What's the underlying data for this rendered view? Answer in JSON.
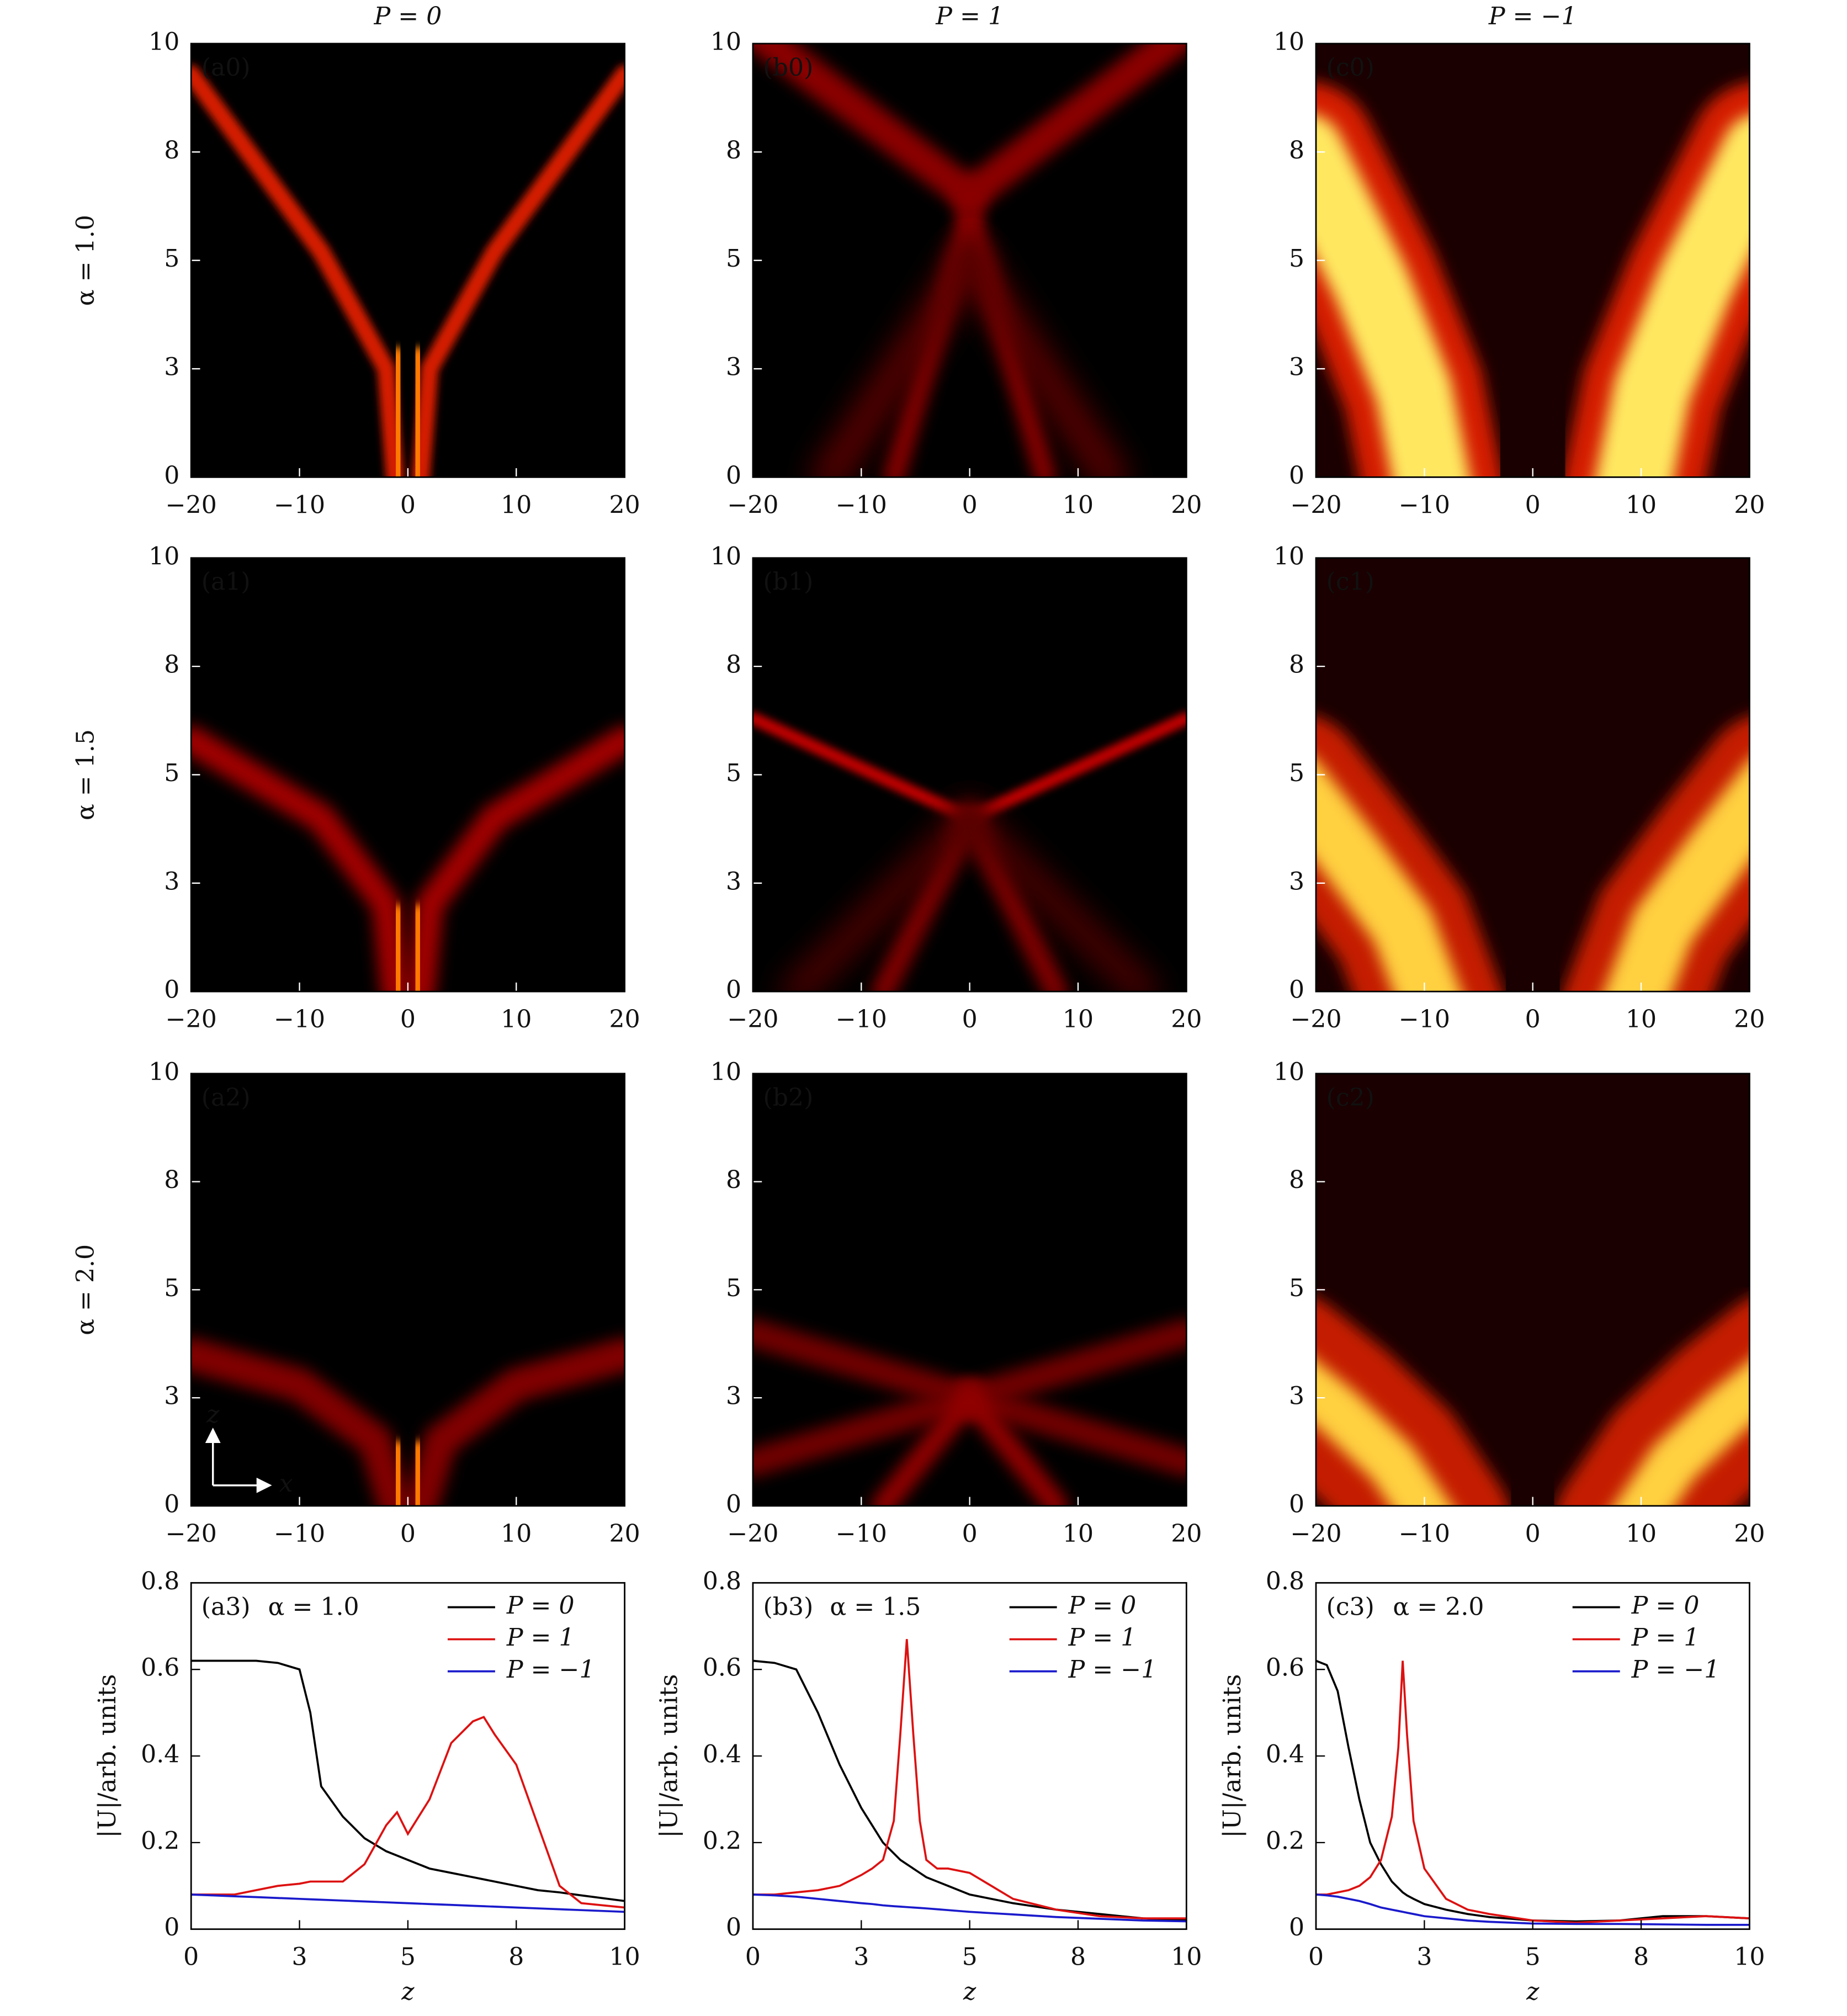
{
  "figure": {
    "column_titles": [
      "P = 0",
      "P = 1",
      "P = −1"
    ],
    "row_labels": [
      "α = 1.0",
      "α = 1.5",
      "α = 2.0"
    ]
  },
  "chart_data": [
    {
      "type": "heatmap",
      "panel_label": "(a0)",
      "xlim": [
        -20,
        20
      ],
      "ylim": [
        0,
        10
      ],
      "xticks": [
        {
          "value": -20,
          "label": "−20"
        },
        {
          "value": -10,
          "label": "−10"
        },
        0,
        10,
        20
      ],
      "yticks": [
        0,
        {
          "value": 2.5,
          "label": "3"
        },
        5,
        {
          "value": 7.5,
          "label": "8"
        },
        10
      ]
    },
    {
      "type": "heatmap",
      "panel_label": "(b0)",
      "xlim": [
        -20,
        20
      ],
      "ylim": [
        0,
        10
      ],
      "xticks": [
        {
          "value": -20,
          "label": "−20"
        },
        {
          "value": -10,
          "label": "−10"
        },
        0,
        10,
        20
      ],
      "yticks": [
        0,
        {
          "value": 2.5,
          "label": "3"
        },
        5,
        {
          "value": 7.5,
          "label": "8"
        },
        10
      ]
    },
    {
      "type": "heatmap",
      "panel_label": "(c0)",
      "xlim": [
        -20,
        20
      ],
      "ylim": [
        0,
        10
      ],
      "xticks": [
        {
          "value": -20,
          "label": "−20"
        },
        {
          "value": -10,
          "label": "−10"
        },
        0,
        10,
        20
      ],
      "yticks": [
        0,
        {
          "value": 2.5,
          "label": "3"
        },
        5,
        {
          "value": 7.5,
          "label": "8"
        },
        10
      ]
    },
    {
      "type": "heatmap",
      "panel_label": "(a1)",
      "xlim": [
        -20,
        20
      ],
      "ylim": [
        0,
        10
      ],
      "xticks": [
        {
          "value": -20,
          "label": "−20"
        },
        {
          "value": -10,
          "label": "−10"
        },
        0,
        10,
        20
      ],
      "yticks": [
        0,
        {
          "value": 2.5,
          "label": "3"
        },
        5,
        {
          "value": 7.5,
          "label": "8"
        },
        10
      ]
    },
    {
      "type": "heatmap",
      "panel_label": "(b1)",
      "xlim": [
        -20,
        20
      ],
      "ylim": [
        0,
        10
      ],
      "xticks": [
        {
          "value": -20,
          "label": "−20"
        },
        {
          "value": -10,
          "label": "−10"
        },
        0,
        10,
        20
      ],
      "yticks": [
        0,
        {
          "value": 2.5,
          "label": "3"
        },
        5,
        {
          "value": 7.5,
          "label": "8"
        },
        10
      ]
    },
    {
      "type": "heatmap",
      "panel_label": "(c1)",
      "xlim": [
        -20,
        20
      ],
      "ylim": [
        0,
        10
      ],
      "xticks": [
        {
          "value": -20,
          "label": "−20"
        },
        {
          "value": -10,
          "label": "−10"
        },
        0,
        10,
        20
      ],
      "yticks": [
        0,
        {
          "value": 2.5,
          "label": "3"
        },
        5,
        {
          "value": 7.5,
          "label": "8"
        },
        10
      ]
    },
    {
      "type": "heatmap",
      "panel_label": "(a2)",
      "inset_labels": [
        "z",
        "x"
      ],
      "xlim": [
        -20,
        20
      ],
      "ylim": [
        0,
        10
      ],
      "xticks": [
        {
          "value": -20,
          "label": "−20"
        },
        {
          "value": -10,
          "label": "−10"
        },
        0,
        10,
        20
      ],
      "yticks": [
        0,
        {
          "value": 2.5,
          "label": "3"
        },
        5,
        {
          "value": 7.5,
          "label": "8"
        },
        10
      ]
    },
    {
      "type": "heatmap",
      "panel_label": "(b2)",
      "xlim": [
        -20,
        20
      ],
      "ylim": [
        0,
        10
      ],
      "xticks": [
        {
          "value": -20,
          "label": "−20"
        },
        {
          "value": -10,
          "label": "−10"
        },
        0,
        10,
        20
      ],
      "yticks": [
        0,
        {
          "value": 2.5,
          "label": "3"
        },
        5,
        {
          "value": 7.5,
          "label": "8"
        },
        10
      ]
    },
    {
      "type": "heatmap",
      "panel_label": "(c2)",
      "xlim": [
        -20,
        20
      ],
      "ylim": [
        0,
        10
      ],
      "xticks": [
        {
          "value": -20,
          "label": "−20"
        },
        {
          "value": -10,
          "label": "−10"
        },
        0,
        10,
        20
      ],
      "yticks": [
        0,
        {
          "value": 2.5,
          "label": "3"
        },
        5,
        {
          "value": 7.5,
          "label": "8"
        },
        10
      ]
    },
    {
      "type": "line",
      "panel_label": "(a3)",
      "annotation": "α = 1.0",
      "xlabel": "z",
      "ylabel": "|U|/arb. units",
      "xlim": [
        0,
        10
      ],
      "ylim": [
        0,
        0.8
      ],
      "xticks": [
        0,
        {
          "value": 2.5,
          "label": "3"
        },
        5,
        {
          "value": 7.5,
          "label": "8"
        },
        10
      ],
      "yticks": [
        0,
        0.2,
        0.4,
        0.6,
        0.8
      ],
      "x": [
        0,
        0.5,
        1,
        1.5,
        2,
        2.5,
        2.75,
        3,
        3.5,
        4,
        4.5,
        4.75,
        5,
        5.5,
        6,
        6.5,
        6.75,
        7,
        7.5,
        8,
        8.5,
        9,
        10
      ],
      "series": [
        {
          "name": "P = 0",
          "color": "#000000",
          "values": [
            0.62,
            0.62,
            0.62,
            0.62,
            0.615,
            0.6,
            0.5,
            0.33,
            0.26,
            0.21,
            0.18,
            0.17,
            0.16,
            0.14,
            0.13,
            0.12,
            0.115,
            0.11,
            0.1,
            0.09,
            0.085,
            0.078,
            0.065
          ]
        },
        {
          "name": "P = 1",
          "color": "#dd1111",
          "values": [
            0.08,
            0.08,
            0.08,
            0.09,
            0.1,
            0.105,
            0.11,
            0.11,
            0.11,
            0.15,
            0.24,
            0.27,
            0.22,
            0.3,
            0.43,
            0.48,
            0.49,
            0.45,
            0.38,
            0.24,
            0.1,
            0.06,
            0.05
          ]
        },
        {
          "name": "P = −1",
          "color": "#1a1acc",
          "values": [
            0.08,
            0.078,
            0.076,
            0.074,
            0.072,
            0.07,
            0.069,
            0.068,
            0.066,
            0.064,
            0.062,
            0.061,
            0.06,
            0.058,
            0.056,
            0.054,
            0.053,
            0.052,
            0.05,
            0.048,
            0.046,
            0.044,
            0.04
          ]
        }
      ]
    },
    {
      "type": "line",
      "panel_label": "(b3)",
      "annotation": "α = 1.5",
      "xlabel": "z",
      "ylabel": "|U|/arb. units",
      "xlim": [
        0,
        10
      ],
      "ylim": [
        0,
        0.8
      ],
      "xticks": [
        0,
        {
          "value": 2.5,
          "label": "3"
        },
        5,
        {
          "value": 7.5,
          "label": "8"
        },
        10
      ],
      "yticks": [
        0,
        0.2,
        0.4,
        0.6,
        0.8
      ],
      "x": [
        0,
        0.5,
        1,
        1.5,
        2,
        2.5,
        2.75,
        3,
        3.25,
        3.4,
        3.55,
        3.7,
        3.85,
        4,
        4.25,
        4.5,
        5,
        5.5,
        6,
        7,
        8,
        9,
        10
      ],
      "series": [
        {
          "name": "P = 0",
          "color": "#000000",
          "values": [
            0.62,
            0.615,
            0.6,
            0.5,
            0.38,
            0.28,
            0.24,
            0.2,
            0.175,
            0.16,
            0.15,
            0.14,
            0.13,
            0.12,
            0.11,
            0.1,
            0.08,
            0.07,
            0.06,
            0.045,
            0.035,
            0.025,
            0.02
          ]
        },
        {
          "name": "P = 1",
          "color": "#dd1111",
          "values": [
            0.08,
            0.08,
            0.085,
            0.09,
            0.1,
            0.125,
            0.14,
            0.16,
            0.25,
            0.45,
            0.67,
            0.45,
            0.25,
            0.16,
            0.14,
            0.14,
            0.13,
            0.1,
            0.07,
            0.045,
            0.03,
            0.025,
            0.025
          ]
        },
        {
          "name": "P = −1",
          "color": "#1a1acc",
          "values": [
            0.08,
            0.078,
            0.075,
            0.07,
            0.065,
            0.06,
            0.058,
            0.055,
            0.053,
            0.052,
            0.051,
            0.05,
            0.049,
            0.048,
            0.046,
            0.044,
            0.04,
            0.037,
            0.034,
            0.028,
            0.024,
            0.02,
            0.018
          ]
        }
      ]
    },
    {
      "type": "line",
      "panel_label": "(c3)",
      "annotation": "α = 2.0",
      "xlabel": "z",
      "ylabel": "|U|/arb. units",
      "xlim": [
        0,
        10
      ],
      "ylim": [
        0,
        0.8
      ],
      "xticks": [
        0,
        {
          "value": 2.5,
          "label": "3"
        },
        5,
        {
          "value": 7.5,
          "label": "8"
        },
        10
      ],
      "yticks": [
        0,
        0.2,
        0.4,
        0.6,
        0.8
      ],
      "x": [
        0,
        0.25,
        0.5,
        0.75,
        1,
        1.25,
        1.5,
        1.75,
        1.9,
        2,
        2.1,
        2.25,
        2.5,
        3,
        3.5,
        4,
        5,
        6,
        7,
        8,
        9,
        10
      ],
      "series": [
        {
          "name": "P = 0",
          "color": "#000000",
          "values": [
            0.62,
            0.61,
            0.55,
            0.42,
            0.3,
            0.2,
            0.15,
            0.11,
            0.095,
            0.085,
            0.078,
            0.07,
            0.058,
            0.045,
            0.035,
            0.028,
            0.02,
            0.018,
            0.02,
            0.03,
            0.03,
            0.025
          ]
        },
        {
          "name": "P = 1",
          "color": "#dd1111",
          "values": [
            0.08,
            0.08,
            0.085,
            0.09,
            0.1,
            0.12,
            0.16,
            0.26,
            0.42,
            0.62,
            0.45,
            0.25,
            0.14,
            0.07,
            0.045,
            0.035,
            0.02,
            0.015,
            0.02,
            0.025,
            0.03,
            0.025
          ]
        },
        {
          "name": "P = −1",
          "color": "#1a1acc",
          "values": [
            0.08,
            0.078,
            0.075,
            0.07,
            0.065,
            0.058,
            0.05,
            0.045,
            0.042,
            0.04,
            0.038,
            0.035,
            0.03,
            0.025,
            0.02,
            0.017,
            0.013,
            0.012,
            0.012,
            0.011,
            0.01,
            0.01
          ]
        }
      ]
    }
  ]
}
